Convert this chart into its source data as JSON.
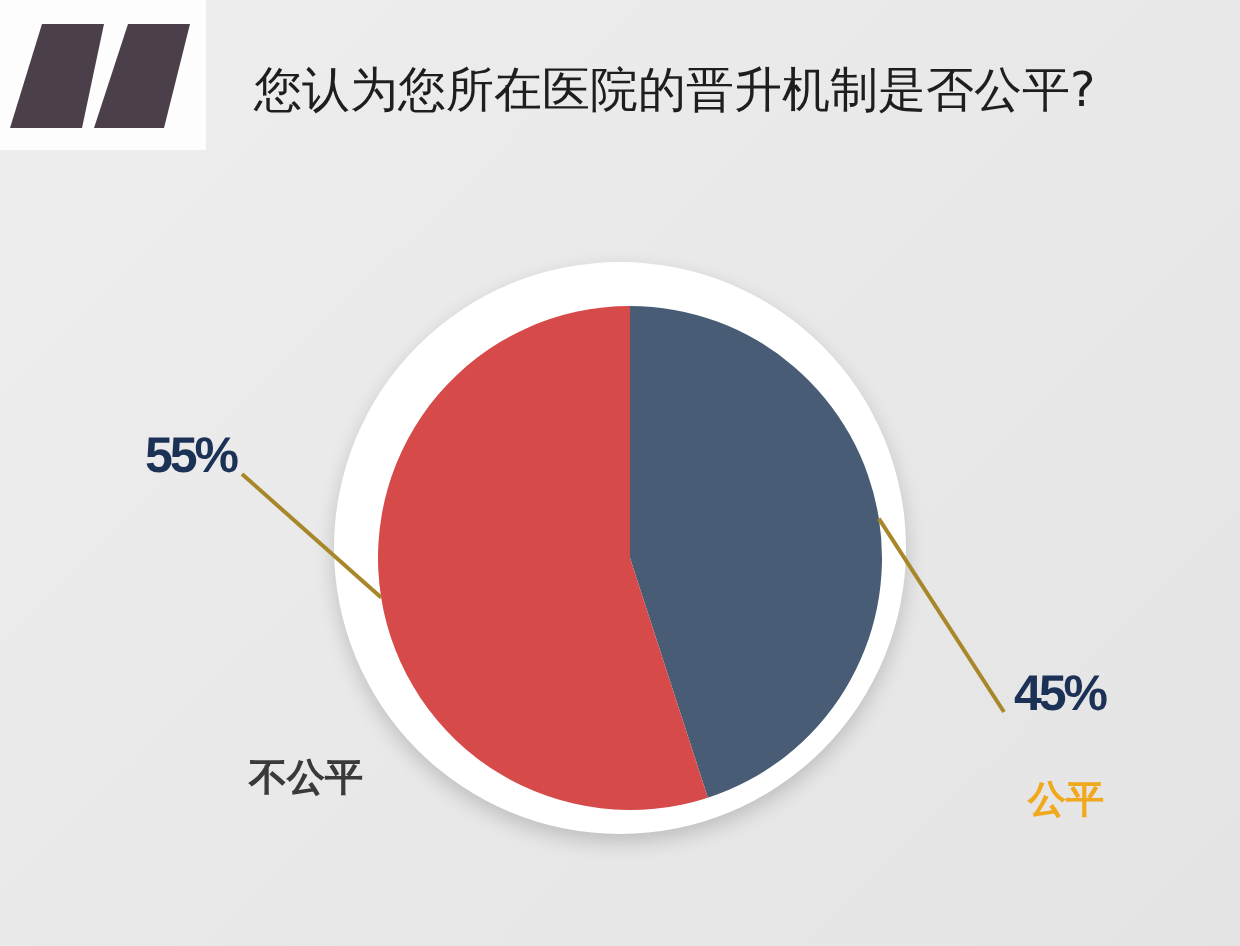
{
  "chart_data": {
    "type": "pie",
    "title": "您认为您所在医院的晋升机制是否公平?",
    "categories": [
      "公平",
      "不公平"
    ],
    "values": [
      45,
      55
    ],
    "colors": [
      "#485d75",
      "#d64b4a"
    ],
    "value_labels": [
      "45%",
      "55%"
    ]
  }
}
